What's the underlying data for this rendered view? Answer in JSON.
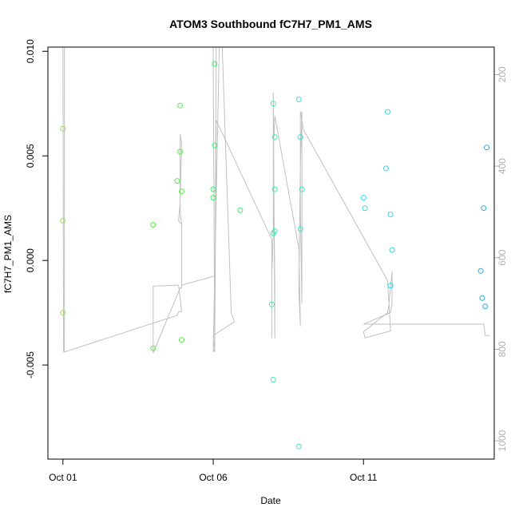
{
  "chart_data": {
    "type": "scatter",
    "title": "ATOM3 Southbound fC7H7_PM1_AMS",
    "xlabel": "Date",
    "ylabel": "fC7H7_PM1_AMS",
    "x_unit": "days",
    "x_ticks": [
      {
        "value": 0,
        "label": "Oct 01"
      },
      {
        "value": 5,
        "label": "Oct 06"
      },
      {
        "value": 10,
        "label": "Oct 11"
      }
    ],
    "xlim": [
      -0.5,
      14.35
    ],
    "ylim": [
      -0.0095,
      0.0102
    ],
    "y_ticks": [
      {
        "value": -0.005,
        "label": "-0.005"
      },
      {
        "value": 0.0,
        "label": "0.000"
      },
      {
        "value": 0.005,
        "label": "0.005"
      },
      {
        "value": 0.01,
        "label": "0.010"
      }
    ],
    "y2_ticks": [
      {
        "value": 200,
        "label": "200"
      },
      {
        "value": 400,
        "label": "400"
      },
      {
        "value": 600,
        "label": "600"
      },
      {
        "value": 800,
        "label": "800"
      },
      {
        "value": 1000,
        "label": "1000"
      }
    ],
    "y2lim": [
      1040,
      140
    ],
    "y2_inverted": true,
    "grid": false,
    "points": [
      {
        "x": 0.0,
        "y": 0.0063,
        "color": "#9ee051"
      },
      {
        "x": 0.0,
        "y": 0.0019,
        "color": "#9ee051"
      },
      {
        "x": 0.0,
        "y": -0.0025,
        "color": "#9ee051"
      },
      {
        "x": 3.0,
        "y": 0.0017,
        "color": "#5fe844"
      },
      {
        "x": 3.0,
        "y": -0.0042,
        "color": "#5fe844"
      },
      {
        "x": 3.8,
        "y": 0.0038,
        "color": "#55ea47"
      },
      {
        "x": 3.9,
        "y": 0.0074,
        "color": "#55ea47"
      },
      {
        "x": 3.9,
        "y": 0.0052,
        "color": "#55ea47"
      },
      {
        "x": 3.95,
        "y": 0.0033,
        "color": "#55ea47"
      },
      {
        "x": 3.95,
        "y": -0.0038,
        "color": "#55ea47"
      },
      {
        "x": 5.0,
        "y": 0.0034,
        "color": "#3ef06a"
      },
      {
        "x": 5.0,
        "y": 0.003,
        "color": "#3ef06a"
      },
      {
        "x": 5.05,
        "y": 0.0094,
        "color": "#3ef06a"
      },
      {
        "x": 5.05,
        "y": 0.0055,
        "color": "#3ef06a"
      },
      {
        "x": 5.9,
        "y": 0.0024,
        "color": "#3fee60"
      },
      {
        "x": 7.0,
        "y": 0.0075,
        "color": "#37edb0"
      },
      {
        "x": 7.05,
        "y": 0.0059,
        "color": "#37edb0"
      },
      {
        "x": 7.05,
        "y": 0.0034,
        "color": "#37edb0"
      },
      {
        "x": 7.0,
        "y": 0.0013,
        "color": "#37edb0"
      },
      {
        "x": 7.05,
        "y": 0.0014,
        "color": "#37edb0"
      },
      {
        "x": 6.95,
        "y": -0.0021,
        "color": "#37edb0"
      },
      {
        "x": 7.0,
        "y": -0.0057,
        "color": "#37edb0"
      },
      {
        "x": 7.85,
        "y": 0.0077,
        "color": "#35e8c8"
      },
      {
        "x": 7.9,
        "y": 0.0059,
        "color": "#35e8c8"
      },
      {
        "x": 7.95,
        "y": 0.0034,
        "color": "#35e8c8"
      },
      {
        "x": 7.9,
        "y": 0.0015,
        "color": "#35e8c8"
      },
      {
        "x": 7.85,
        "y": -0.0089,
        "color": "#35e8c8"
      },
      {
        "x": 10.0,
        "y": 0.003,
        "color": "#36dde0"
      },
      {
        "x": 10.05,
        "y": 0.0025,
        "color": "#36dde0"
      },
      {
        "x": 10.8,
        "y": 0.0071,
        "color": "#33d6ea"
      },
      {
        "x": 10.75,
        "y": 0.0044,
        "color": "#33d6ea"
      },
      {
        "x": 10.9,
        "y": 0.0022,
        "color": "#33d6ea"
      },
      {
        "x": 10.95,
        "y": 0.0005,
        "color": "#33d6ea"
      },
      {
        "x": 10.9,
        "y": -0.0012,
        "color": "#33d6ea"
      },
      {
        "x": 14.1,
        "y": 0.0054,
        "color": "#2ea6ea"
      },
      {
        "x": 14.0,
        "y": 0.0025,
        "color": "#2ea6ea"
      },
      {
        "x": 13.9,
        "y": -0.0005,
        "color": "#2ea6ea"
      },
      {
        "x": 13.95,
        "y": -0.0018,
        "color": "#2ea6ea"
      },
      {
        "x": 14.05,
        "y": -0.0022,
        "color": "#2ea6ea"
      }
    ],
    "profile_line": {
      "axis": "y2",
      "color": "#c0c0c0",
      "points": [
        [
          0.02,
          806
        ],
        [
          0.0,
          140
        ],
        [
          0.05,
          140
        ],
        [
          0.05,
          806
        ],
        [
          3.8,
          726
        ],
        [
          3.85,
          718
        ],
        [
          3.9,
          718
        ],
        [
          3.95,
          718
        ],
        [
          3.85,
          660
        ],
        [
          3.0,
          662
        ],
        [
          3.0,
          808
        ],
        [
          3.9,
          666
        ],
        [
          3.95,
          666
        ],
        [
          3.95,
          527
        ],
        [
          3.85,
          520
        ],
        [
          3.9,
          480
        ],
        [
          3.95,
          350
        ],
        [
          3.9,
          330
        ],
        [
          3.9,
          500
        ],
        [
          3.95,
          525
        ],
        [
          3.95,
          660
        ],
        [
          5.05,
          640
        ],
        [
          5.05,
          806
        ],
        [
          5.0,
          140
        ],
        [
          5.1,
          140
        ],
        [
          5.05,
          806
        ],
        [
          5.0,
          770
        ],
        [
          5.7,
          740
        ],
        [
          5.6,
          720
        ],
        [
          5.3,
          140
        ],
        [
          5.2,
          140
        ],
        [
          5.0,
          806
        ],
        [
          5.05,
          800
        ],
        [
          5.1,
          300
        ],
        [
          6.95,
          560
        ],
        [
          6.95,
          776
        ],
        [
          6.95,
          640
        ],
        [
          7.0,
          540
        ],
        [
          7.0,
          240
        ],
        [
          7.05,
          776
        ],
        [
          7.05,
          650
        ],
        [
          7.0,
          370
        ],
        [
          7.05,
          290
        ],
        [
          7.85,
          580
        ],
        [
          7.9,
          750
        ],
        [
          7.85,
          670
        ],
        [
          7.9,
          400
        ],
        [
          7.95,
          280
        ],
        [
          7.95,
          700
        ],
        [
          7.9,
          500
        ],
        [
          7.9,
          280
        ],
        [
          8.0,
          320
        ],
        [
          10.8,
          650
        ],
        [
          10.85,
          700
        ],
        [
          10.8,
          720
        ],
        [
          10.0,
          762
        ],
        [
          10.05,
          775
        ],
        [
          10.9,
          760
        ],
        [
          10.85,
          700
        ],
        [
          10.95,
          630
        ],
        [
          10.95,
          700
        ],
        [
          10.9,
          720
        ],
        [
          10.0,
          745
        ],
        [
          14.0,
          745
        ],
        [
          14.05,
          770
        ],
        [
          14.2,
          770
        ]
      ]
    }
  }
}
